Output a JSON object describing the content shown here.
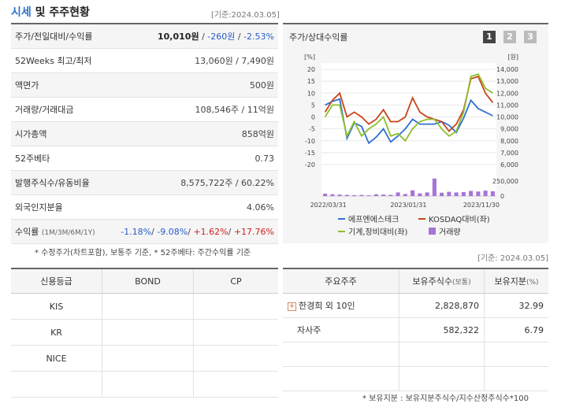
{
  "header": {
    "title_accent": "시세",
    "title_rest": " 및 주주현황",
    "date": "[기준:2024.03.05]"
  },
  "price_table": {
    "rows": [
      {
        "label": "주가/전일대비/수익률",
        "value_main": "10,010원",
        "value_sep1": " / ",
        "value_change": "-260원",
        "value_sep2": " / ",
        "value_rate": "-2.53%"
      },
      {
        "label": "52Weeks 최고/최저",
        "value": "13,060원 / 7,490원"
      },
      {
        "label": "액면가",
        "value": "500원"
      },
      {
        "label": "거래량/거래대금",
        "value": "108,546주 / 11억원"
      },
      {
        "label": "시가총액",
        "value": "858억원"
      },
      {
        "label": "52주베타",
        "value": "0.73"
      },
      {
        "label": "발행주식수/유동비율",
        "value": "8,575,722주 / 60.22%"
      },
      {
        "label": "외국인지분율",
        "value": "4.06%"
      }
    ],
    "returns": {
      "label": "수익률",
      "label_sub": "(1M/3M/6M/1Y)",
      "r1": "-1.18%",
      "r2": "-9.08%",
      "r3": "+1.62%",
      "r4": "+17.76%"
    },
    "note": "* 수정주가(차트포함), 보통주 기준, * 52주베타: 주간수익률 기준"
  },
  "chart_panel": {
    "title": "주가/상대수익률",
    "pages": [
      "1",
      "2",
      "3"
    ],
    "active_page": 0
  },
  "chart_data": {
    "type": "line",
    "left_axis_unit": "[%]",
    "right_axis_unit": "[원]",
    "left_ticks": [
      20,
      15,
      10,
      5,
      0,
      -5,
      -10,
      -15,
      -20
    ],
    "right_ticks": [
      "14,000",
      "13,000",
      "12,000",
      "11,000",
      "10,000",
      "9,000",
      "8,000",
      "7,000",
      "6,000"
    ],
    "ylim_left": [
      -20,
      20
    ],
    "ylim_right": [
      6000,
      14000
    ],
    "x_ticks": [
      "2022/03/31",
      "2023/01/31",
      "2023/11/30"
    ],
    "volume_ticks": [
      "250,000",
      "0"
    ],
    "ylim_volume": [
      0,
      300000
    ],
    "legend": [
      "에프엔에스테크",
      "KOSDAQ대비(좌)",
      "기계,장비대비(좌)",
      "거래량"
    ],
    "colors": {
      "price": "#2f6fd6",
      "kosdaq": "#c8441a",
      "machine": "#8dbf2e",
      "volume": "#a774d6"
    },
    "series": [
      {
        "name": "에프엔에스테크",
        "axis": "right",
        "values": [
          11000,
          11300,
          11500,
          8200,
          9500,
          9200,
          7800,
          8300,
          9000,
          7900,
          8400,
          9000,
          9800,
          9400,
          9400,
          9400,
          9600,
          9300,
          8700,
          9900,
          11400,
          10700,
          10400,
          10100
        ]
      },
      {
        "name": "KOSDAQ대비(좌)",
        "axis": "left",
        "values": [
          2,
          7,
          10,
          0,
          2,
          0,
          -3,
          -1,
          3,
          -2,
          -2,
          0,
          8,
          2,
          0,
          -1,
          -2,
          -6,
          -3,
          3,
          16,
          17,
          10,
          6
        ]
      },
      {
        "name": "기계,장비대비(좌)",
        "axis": "left",
        "values": [
          0,
          5,
          5,
          -8,
          -2,
          -8,
          -5,
          -3,
          0,
          -8,
          -7,
          -10,
          -5,
          -2,
          -1,
          -1,
          -5,
          -8,
          -6,
          2,
          17,
          18,
          12,
          10
        ]
      }
    ],
    "volume": [
      40000,
      30000,
      25000,
      20000,
      15000,
      18000,
      12000,
      30000,
      25000,
      20000,
      60000,
      35000,
      95000,
      45000,
      60000,
      290000,
      55000,
      70000,
      60000,
      65000,
      85000,
      75000,
      90000,
      80000
    ]
  },
  "credit_table": {
    "headers": [
      "신용등급",
      "BOND",
      "CP"
    ],
    "rows": [
      {
        "agency": "KIS",
        "bond": "",
        "cp": ""
      },
      {
        "agency": "KR",
        "bond": "",
        "cp": ""
      },
      {
        "agency": "NICE",
        "bond": "",
        "cp": ""
      }
    ]
  },
  "holder_table": {
    "date": "[기준: 2024.03.05]",
    "headers": [
      "주요주주",
      "보유주식수",
      "(보통)",
      "보유지분",
      "(%)"
    ],
    "rows": [
      {
        "name": "한경희 외 10인",
        "shares": "2,828,870",
        "ratio": "32.99",
        "expandable": true
      },
      {
        "name": "자사주",
        "shares": "582,322",
        "ratio": "6.79",
        "expandable": false
      },
      {
        "name": "",
        "shares": "",
        "ratio": "",
        "expandable": false
      },
      {
        "name": "",
        "shares": "",
        "ratio": "",
        "expandable": false
      }
    ],
    "note": "* 보유지분 : 보유지분주식수/지수산정주식수*100"
  }
}
